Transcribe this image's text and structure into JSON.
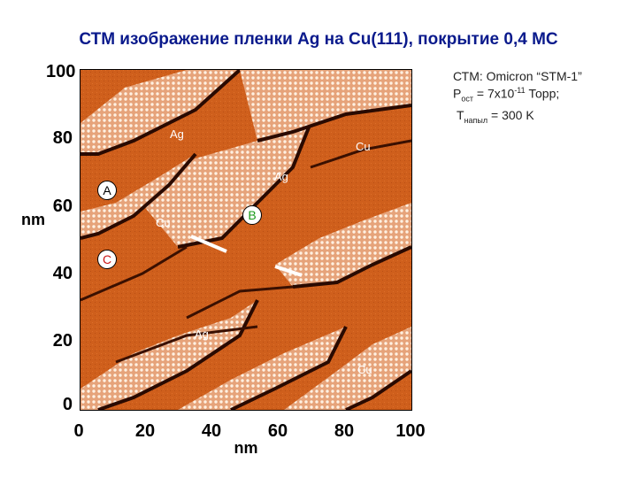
{
  "title": "СТМ изображение пленки Ag на Cu(111), покрытие 0,4 МС",
  "image": {
    "x_axis_label": "nm",
    "y_axis_label": "nm",
    "x_ticks": [
      "0",
      "20",
      "40",
      "60",
      "80",
      "100"
    ],
    "y_ticks": [
      "100",
      "80",
      "60",
      "40",
      "20",
      "0"
    ],
    "region_labels": [
      "Ag",
      "Cu",
      "Ag",
      "Cu",
      "Ag",
      "Cu"
    ],
    "markers": [
      "A",
      "B",
      "C"
    ]
  },
  "info": {
    "line1": "СТМ: Omicron “STM-1”",
    "line2_symbol": "P",
    "line2_sub": "ост",
    "line2_value": " = 7x10",
    "line2_exp": "-11",
    "line2_unit": " Торр;",
    "line3_symbol": "T",
    "line3_sub": "напыл",
    "line3_value": " = 300 K"
  },
  "colors": {
    "title": "#0a1a8c",
    "copper": "#cf5f1c",
    "silver": "#e9a980",
    "marker_b": "#1a9a1a",
    "marker_c": "#c81414"
  }
}
